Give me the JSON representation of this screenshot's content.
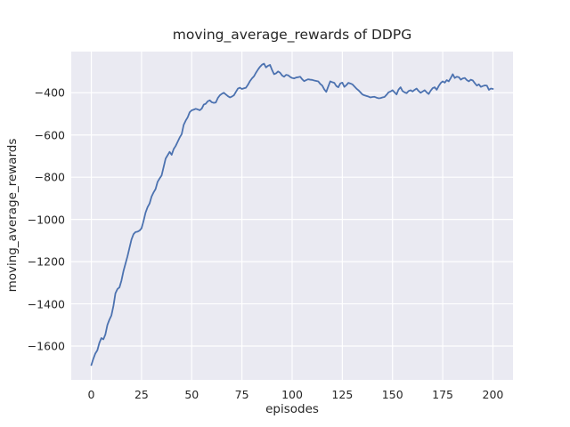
{
  "chart_data": {
    "type": "line",
    "title": "moving_average_rewards of DDPG",
    "xlabel": "episodes",
    "ylabel": "moving_average_rewards",
    "x_start": 0,
    "x_step": 1,
    "series": [
      {
        "name": "moving_average_rewards",
        "values": [
          -1690,
          -1660,
          -1635,
          -1620,
          -1585,
          -1562,
          -1568,
          -1545,
          -1500,
          -1475,
          -1455,
          -1410,
          -1350,
          -1330,
          -1322,
          -1290,
          -1245,
          -1210,
          -1175,
          -1135,
          -1095,
          -1070,
          -1060,
          -1058,
          -1053,
          -1042,
          -1008,
          -968,
          -942,
          -925,
          -892,
          -872,
          -856,
          -822,
          -806,
          -792,
          -752,
          -712,
          -696,
          -680,
          -694,
          -667,
          -652,
          -632,
          -612,
          -596,
          -552,
          -532,
          -516,
          -492,
          -483,
          -480,
          -476,
          -479,
          -483,
          -475,
          -456,
          -452,
          -440,
          -436,
          -445,
          -448,
          -446,
          -425,
          -412,
          -405,
          -400,
          -408,
          -416,
          -422,
          -418,
          -412,
          -396,
          -380,
          -376,
          -382,
          -379,
          -376,
          -362,
          -345,
          -332,
          -322,
          -305,
          -290,
          -277,
          -267,
          -262,
          -280,
          -272,
          -268,
          -292,
          -312,
          -308,
          -299,
          -305,
          -318,
          -324,
          -315,
          -317,
          -325,
          -330,
          -332,
          -328,
          -326,
          -324,
          -336,
          -345,
          -340,
          -336,
          -338,
          -339,
          -342,
          -344,
          -346,
          -358,
          -366,
          -384,
          -396,
          -370,
          -346,
          -350,
          -353,
          -368,
          -374,
          -356,
          -352,
          -372,
          -364,
          -353,
          -356,
          -360,
          -370,
          -380,
          -388,
          -398,
          -408,
          -412,
          -415,
          -418,
          -422,
          -420,
          -419,
          -423,
          -426,
          -425,
          -422,
          -420,
          -410,
          -398,
          -394,
          -388,
          -398,
          -408,
          -385,
          -374,
          -392,
          -398,
          -402,
          -392,
          -388,
          -394,
          -386,
          -380,
          -392,
          -400,
          -394,
          -388,
          -398,
          -406,
          -390,
          -378,
          -374,
          -386,
          -368,
          -354,
          -346,
          -352,
          -340,
          -346,
          -330,
          -312,
          -330,
          -324,
          -326,
          -338,
          -332,
          -330,
          -340,
          -346,
          -338,
          -342,
          -355,
          -366,
          -360,
          -372,
          -368,
          -365,
          -366,
          -386,
          -380,
          -382
        ]
      }
    ],
    "xticks": [
      0,
      25,
      50,
      75,
      100,
      125,
      150,
      175,
      200
    ],
    "yticks": [
      -400,
      -600,
      -800,
      -1000,
      -1200,
      -1400,
      -1600
    ],
    "xlim": [
      -10,
      210
    ],
    "ylim": [
      -1760,
      -205
    ],
    "grid": true,
    "legend_position": "none",
    "line_color": "#4c72b0",
    "plot_background": "#eaeaf2",
    "grid_color": "#ffffff",
    "text_color": "#262626",
    "figure_background": "#ffffff"
  }
}
